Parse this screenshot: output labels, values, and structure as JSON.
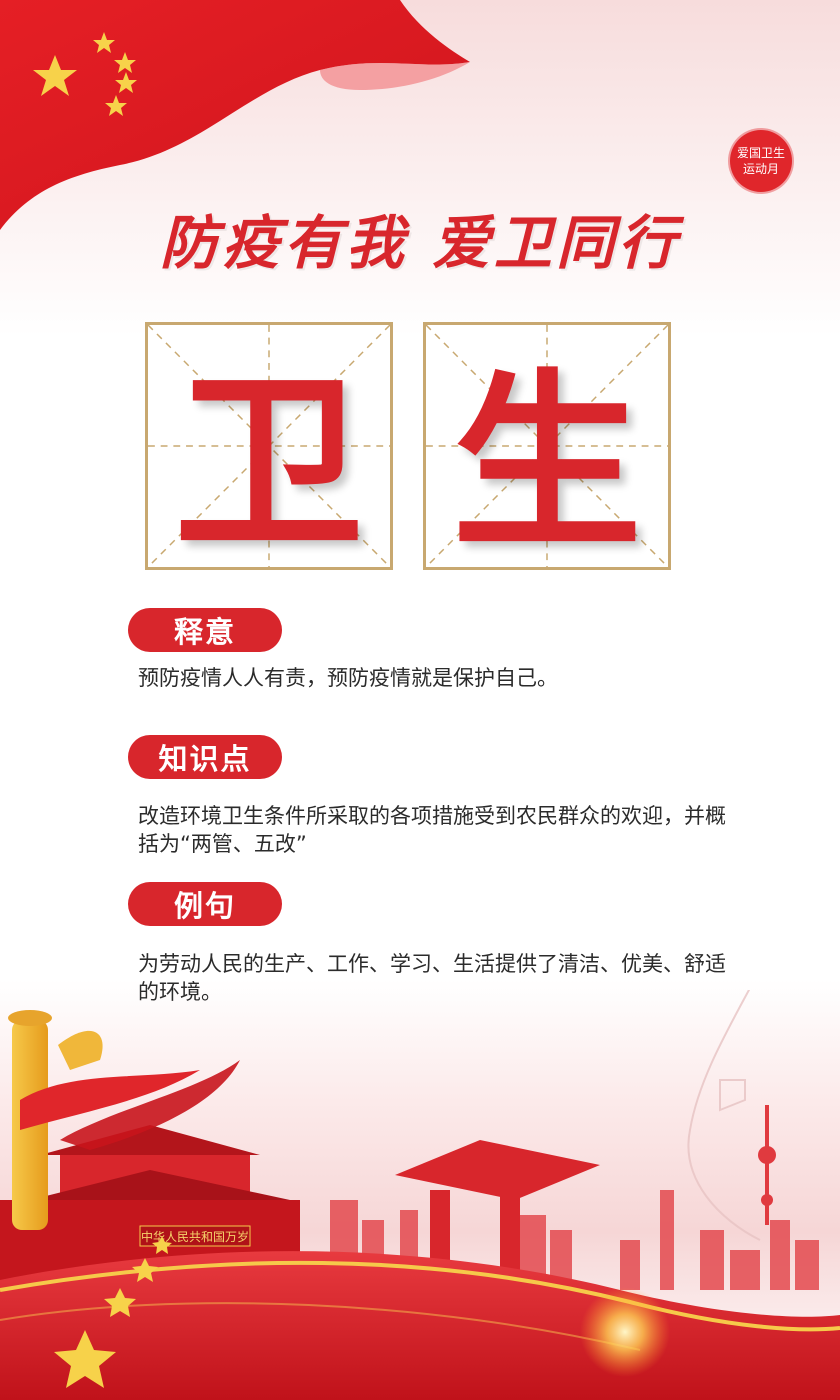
{
  "seal": {
    "line1": "爱国卫生",
    "line2": "运动月"
  },
  "slogan": "防疫有我  爱卫同行",
  "characters": [
    "卫",
    "生"
  ],
  "sections": [
    {
      "title": "释意",
      "body": "预防疫情人人有责，预防疫情就是保护自己。"
    },
    {
      "title": "知识点",
      "body": "改造环境卫生条件所采取的各项措施受到农民群众的欢迎，并概括为“两管、五改”"
    },
    {
      "title": "例句",
      "body": "为劳动人民的生产、工作、学习、生活提供了清洁、优美、舒适的环境。"
    }
  ],
  "banner_text": "中华人民共和国万岁",
  "colors": {
    "primary": "#d8262c",
    "gold": "#c8a870",
    "star": "#f7d24a"
  }
}
